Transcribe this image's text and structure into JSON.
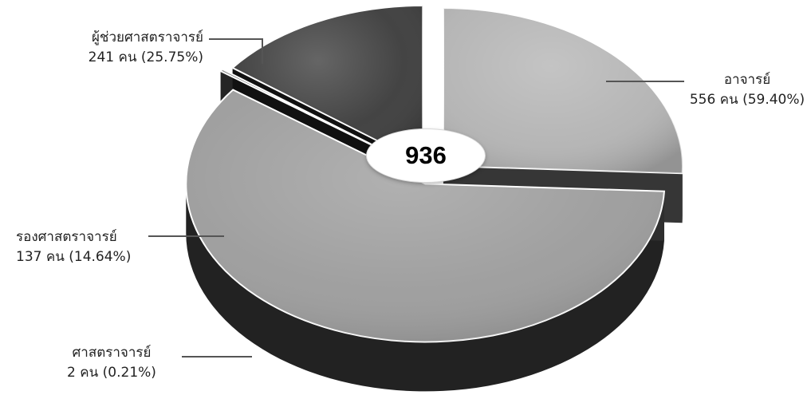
{
  "chart_data": {
    "type": "pie",
    "style": "3d-exploded",
    "unit": "คน",
    "total": "936",
    "series": [
      {
        "name": "ผู้ช่วยศาสตราจารย์",
        "value": 241,
        "percent": 25.75,
        "value_label": "241 คน (25.75%)",
        "color": "#b3b3b3"
      },
      {
        "name": "อาจารย์",
        "value": 556,
        "percent": 59.4,
        "value_label": "556 คน (59.40%)",
        "color": "#9b9b9b"
      },
      {
        "name": "ศาสตราจารย์",
        "value": 2,
        "percent": 0.21,
        "value_label": "2 คน (0.21%)",
        "color": "#7a7a7a"
      },
      {
        "name": "รองศาสตราจารย์",
        "value": 137,
        "percent": 14.64,
        "value_label": "137 คน (14.64%)",
        "color": "#3a3a3a"
      }
    ]
  }
}
